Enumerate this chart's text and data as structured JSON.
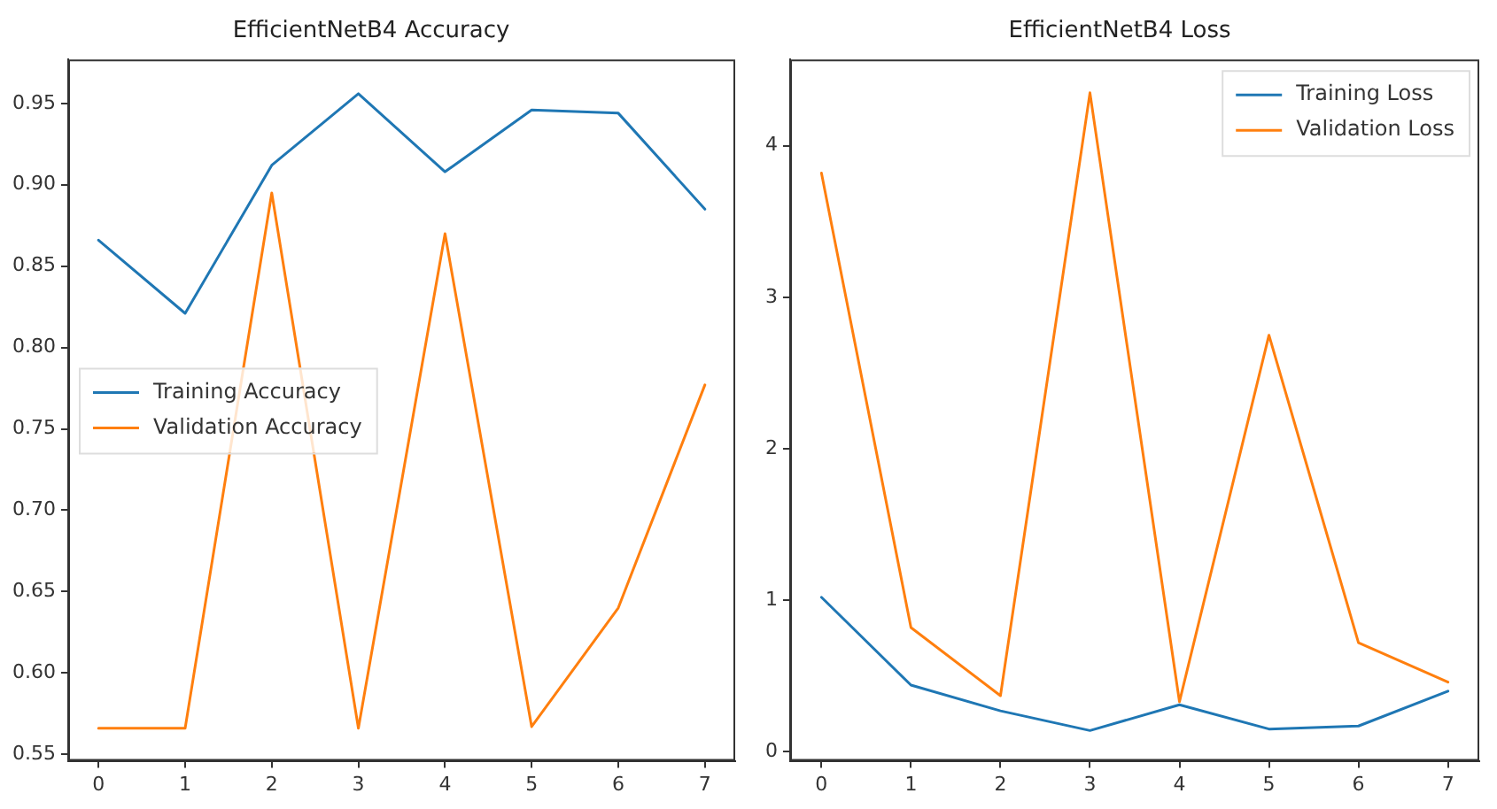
{
  "chart_data": [
    {
      "type": "line",
      "title": "EfficientNetB4 Accuracy",
      "x": [
        0,
        1,
        2,
        3,
        4,
        5,
        6,
        7
      ],
      "xlim": [
        -0.35,
        7.35
      ],
      "xticks": [
        0,
        1,
        2,
        3,
        4,
        5,
        6,
        7
      ],
      "ylim": [
        0.546,
        0.977
      ],
      "yticks": [
        0.55,
        {
          "value": 0.6,
          "label": "0.60"
        },
        0.65,
        {
          "value": 0.7,
          "label": "0.70"
        },
        0.75,
        {
          "value": 0.8,
          "label": "0.80"
        },
        0.85,
        {
          "value": 0.9,
          "label": "0.90"
        },
        0.95
      ],
      "grid": false,
      "legend": "center left",
      "marker": "none",
      "line_style": "solid",
      "series": [
        {
          "name": "Training Accuracy",
          "color": "#1f77b4",
          "values": [
            0.866,
            0.821,
            0.912,
            0.956,
            0.908,
            0.946,
            0.944,
            0.885
          ]
        },
        {
          "name": "Validation Accuracy",
          "color": "#ff7f0e",
          "values": [
            0.566,
            0.566,
            0.895,
            0.566,
            0.87,
            0.567,
            0.64,
            0.777
          ]
        }
      ]
    },
    {
      "type": "line",
      "title": "EfficientNetB4 Loss",
      "x": [
        0,
        1,
        2,
        3,
        4,
        5,
        6,
        7
      ],
      "xlim": [
        -0.35,
        7.35
      ],
      "xticks": [
        0,
        1,
        2,
        3,
        4,
        5,
        6,
        7
      ],
      "ylim": [
        -0.06,
        4.57
      ],
      "yticks": [
        0,
        1,
        2,
        3,
        4
      ],
      "grid": false,
      "legend": "top right",
      "marker": "none",
      "line_style": "solid",
      "series": [
        {
          "name": "Training Loss",
          "color": "#1f77b4",
          "values": [
            1.02,
            0.44,
            0.27,
            0.14,
            0.31,
            0.15,
            0.17,
            0.4
          ]
        },
        {
          "name": "Validation Loss",
          "color": "#ff7f0e",
          "values": [
            3.82,
            0.82,
            0.37,
            4.35,
            0.33,
            2.75,
            0.72,
            0.46
          ]
        }
      ]
    }
  ]
}
